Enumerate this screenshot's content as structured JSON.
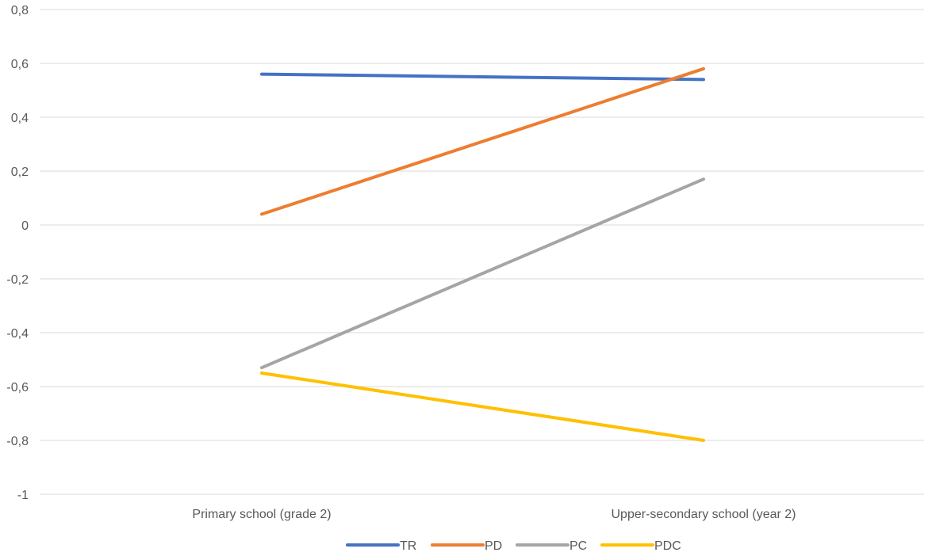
{
  "chart_data": {
    "type": "line",
    "title": "",
    "xlabel": "",
    "ylabel": "",
    "categories": [
      "Primary school (grade 2)",
      "Upper-secondary school (year 2)"
    ],
    "ylim": [
      -1,
      0.8
    ],
    "yticks": [
      0.8,
      0.6,
      0.4,
      0.2,
      0,
      -0.2,
      -0.4,
      -0.6,
      -0.8,
      -1
    ],
    "ytick_labels": [
      "0,8",
      "0,6",
      "0,4",
      "0,2",
      "0",
      "-0,2",
      "-0,4",
      "-0,6",
      "-0,8",
      "-1"
    ],
    "grid": true,
    "legend_position": "bottom",
    "series": [
      {
        "name": "TR",
        "color": "#4472c4",
        "values": [
          0.56,
          0.54
        ]
      },
      {
        "name": "PD",
        "color": "#ed7d31",
        "values": [
          0.04,
          0.58
        ]
      },
      {
        "name": "PC",
        "color": "#a5a5a5",
        "values": [
          -0.53,
          0.17
        ]
      },
      {
        "name": "PDC",
        "color": "#ffc000",
        "values": [
          -0.55,
          -0.8
        ]
      }
    ]
  }
}
